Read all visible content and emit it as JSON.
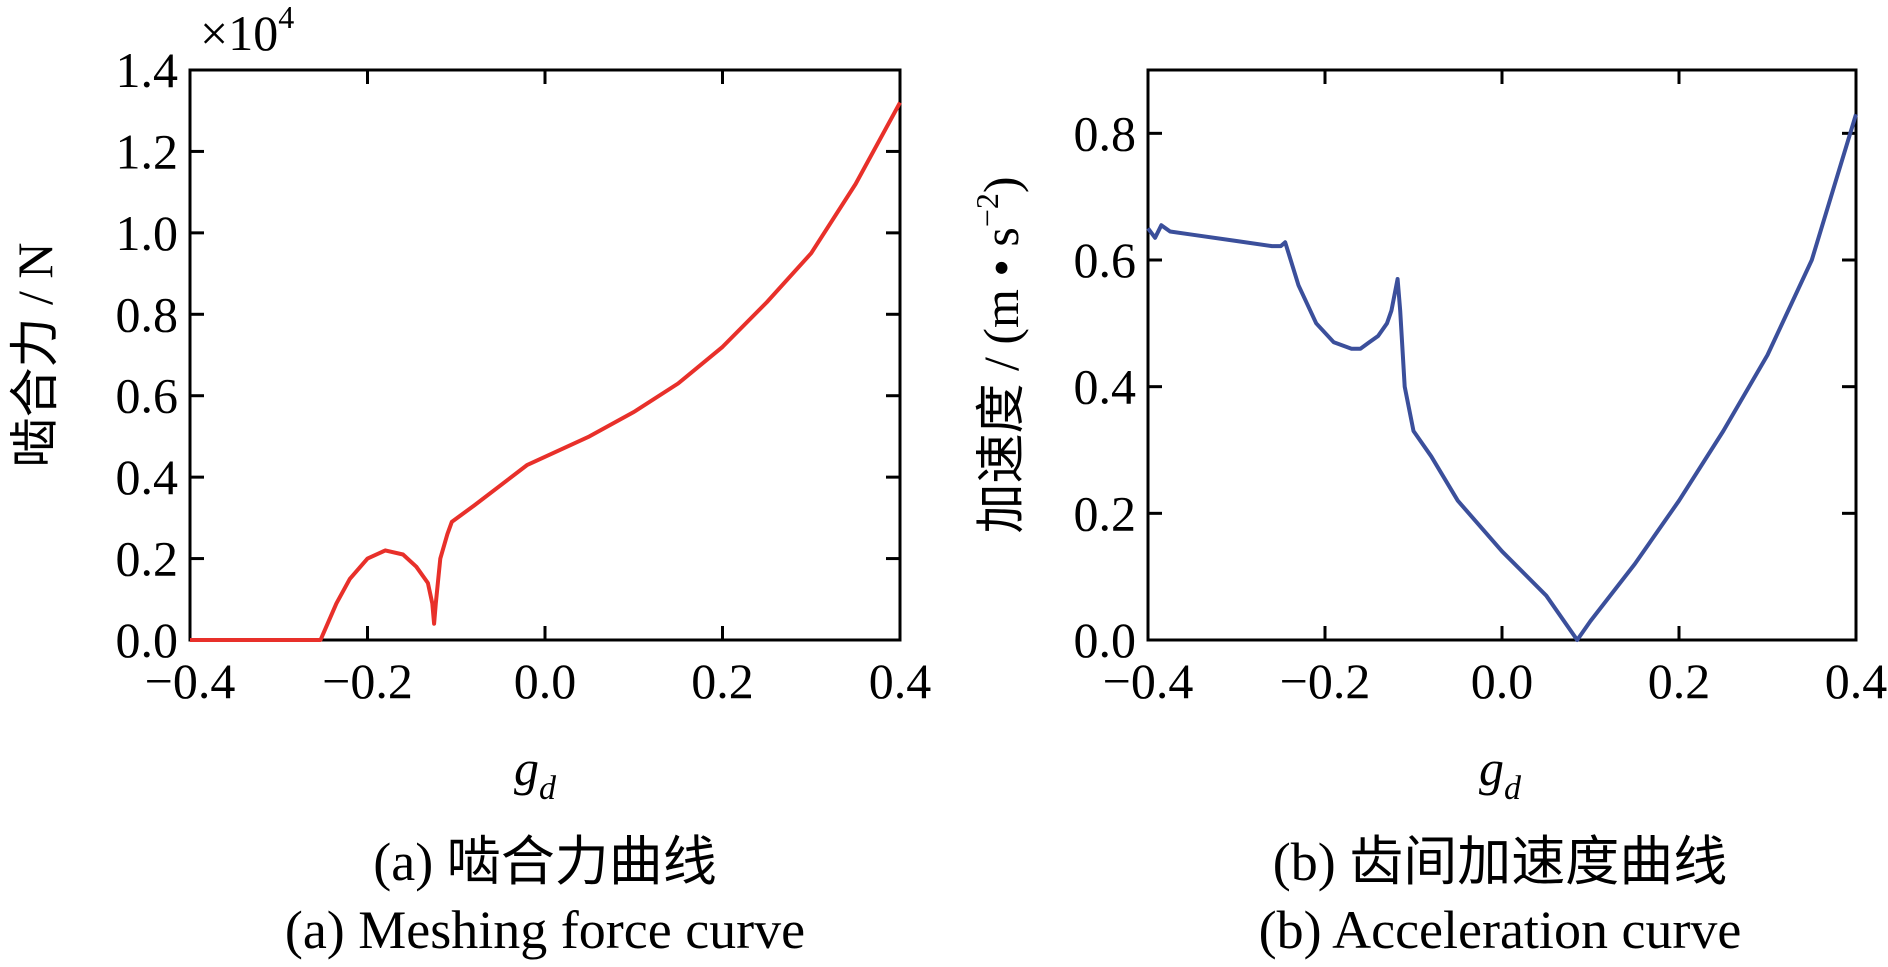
{
  "chart_data": [
    {
      "type": "line",
      "xlabel": "g",
      "xlabel_sub": "d",
      "ylabel": "啮合力 / N",
      "multiplier_base": "×10",
      "multiplier_exp": "4",
      "xlim": [
        -0.4,
        0.4
      ],
      "ylim": [
        0,
        1.4
      ],
      "xticks": [
        -0.4,
        -0.2,
        0.0,
        0.2,
        0.4
      ],
      "xtick_labels": [
        "−0.4",
        "−0.2",
        "0.0",
        "0.2",
        "0.4"
      ],
      "yticks": [
        0.0,
        0.2,
        0.4,
        0.6,
        0.8,
        1.0,
        1.2,
        1.4
      ],
      "ytick_labels": [
        "0.0",
        "0.2",
        "0.4",
        "0.6",
        "0.8",
        "1.0",
        "1.2",
        "1.4"
      ],
      "caption_cn": "(a) 啮合力曲线",
      "caption_en": "(a) Meshing force curve",
      "line_color": "#e8302a",
      "series": [
        {
          "x": [
            -0.4,
            -0.253,
            -0.245,
            -0.235,
            -0.22,
            -0.2,
            -0.18,
            -0.16,
            -0.145,
            -0.132,
            -0.127,
            -0.125,
            -0.123,
            -0.118,
            -0.11,
            -0.105,
            -0.08,
            -0.05,
            -0.02,
            0.0,
            0.05,
            0.1,
            0.15,
            0.2,
            0.25,
            0.3,
            0.35,
            0.4
          ],
          "y": [
            0.0,
            0.0,
            0.04,
            0.09,
            0.15,
            0.2,
            0.22,
            0.21,
            0.18,
            0.14,
            0.09,
            0.04,
            0.09,
            0.2,
            0.26,
            0.29,
            0.33,
            0.38,
            0.43,
            0.45,
            0.5,
            0.56,
            0.63,
            0.72,
            0.83,
            0.95,
            1.12,
            1.32
          ]
        }
      ]
    },
    {
      "type": "line",
      "xlabel": "g",
      "xlabel_sub": "d",
      "ylabel_prefix": "加速度 / (m • s",
      "ylabel_exp": "−2",
      "ylabel_suffix": ")",
      "xlim": [
        -0.4,
        0.4
      ],
      "ylim": [
        0,
        0.9
      ],
      "xticks": [
        -0.4,
        -0.2,
        0.0,
        0.2,
        0.4
      ],
      "xtick_labels": [
        "−0.4",
        "−0.2",
        "0.0",
        "0.2",
        "0.4"
      ],
      "yticks": [
        0.0,
        0.2,
        0.4,
        0.6,
        0.8
      ],
      "ytick_labels": [
        "0.0",
        "0.2",
        "0.4",
        "0.6",
        "0.8"
      ],
      "caption_cn": "(b) 齿间加速度曲线",
      "caption_en": "(b) Acceleration curve",
      "line_color": "#3b4f9b",
      "series": [
        {
          "x": [
            -0.4,
            -0.392,
            -0.385,
            -0.375,
            -0.35,
            -0.3,
            -0.26,
            -0.25,
            -0.245,
            -0.23,
            -0.21,
            -0.19,
            -0.17,
            -0.16,
            -0.15,
            -0.14,
            -0.13,
            -0.125,
            -0.118,
            -0.115,
            -0.11,
            -0.1,
            -0.08,
            -0.05,
            0.0,
            0.05,
            0.085,
            0.1,
            0.15,
            0.2,
            0.25,
            0.3,
            0.35,
            0.4
          ],
          "y": [
            0.65,
            0.635,
            0.655,
            0.645,
            0.64,
            0.63,
            0.622,
            0.622,
            0.628,
            0.56,
            0.5,
            0.47,
            0.46,
            0.46,
            0.47,
            0.48,
            0.5,
            0.52,
            0.57,
            0.52,
            0.4,
            0.33,
            0.29,
            0.22,
            0.14,
            0.07,
            0.0,
            0.03,
            0.12,
            0.22,
            0.33,
            0.45,
            0.6,
            0.83
          ]
        }
      ]
    }
  ]
}
